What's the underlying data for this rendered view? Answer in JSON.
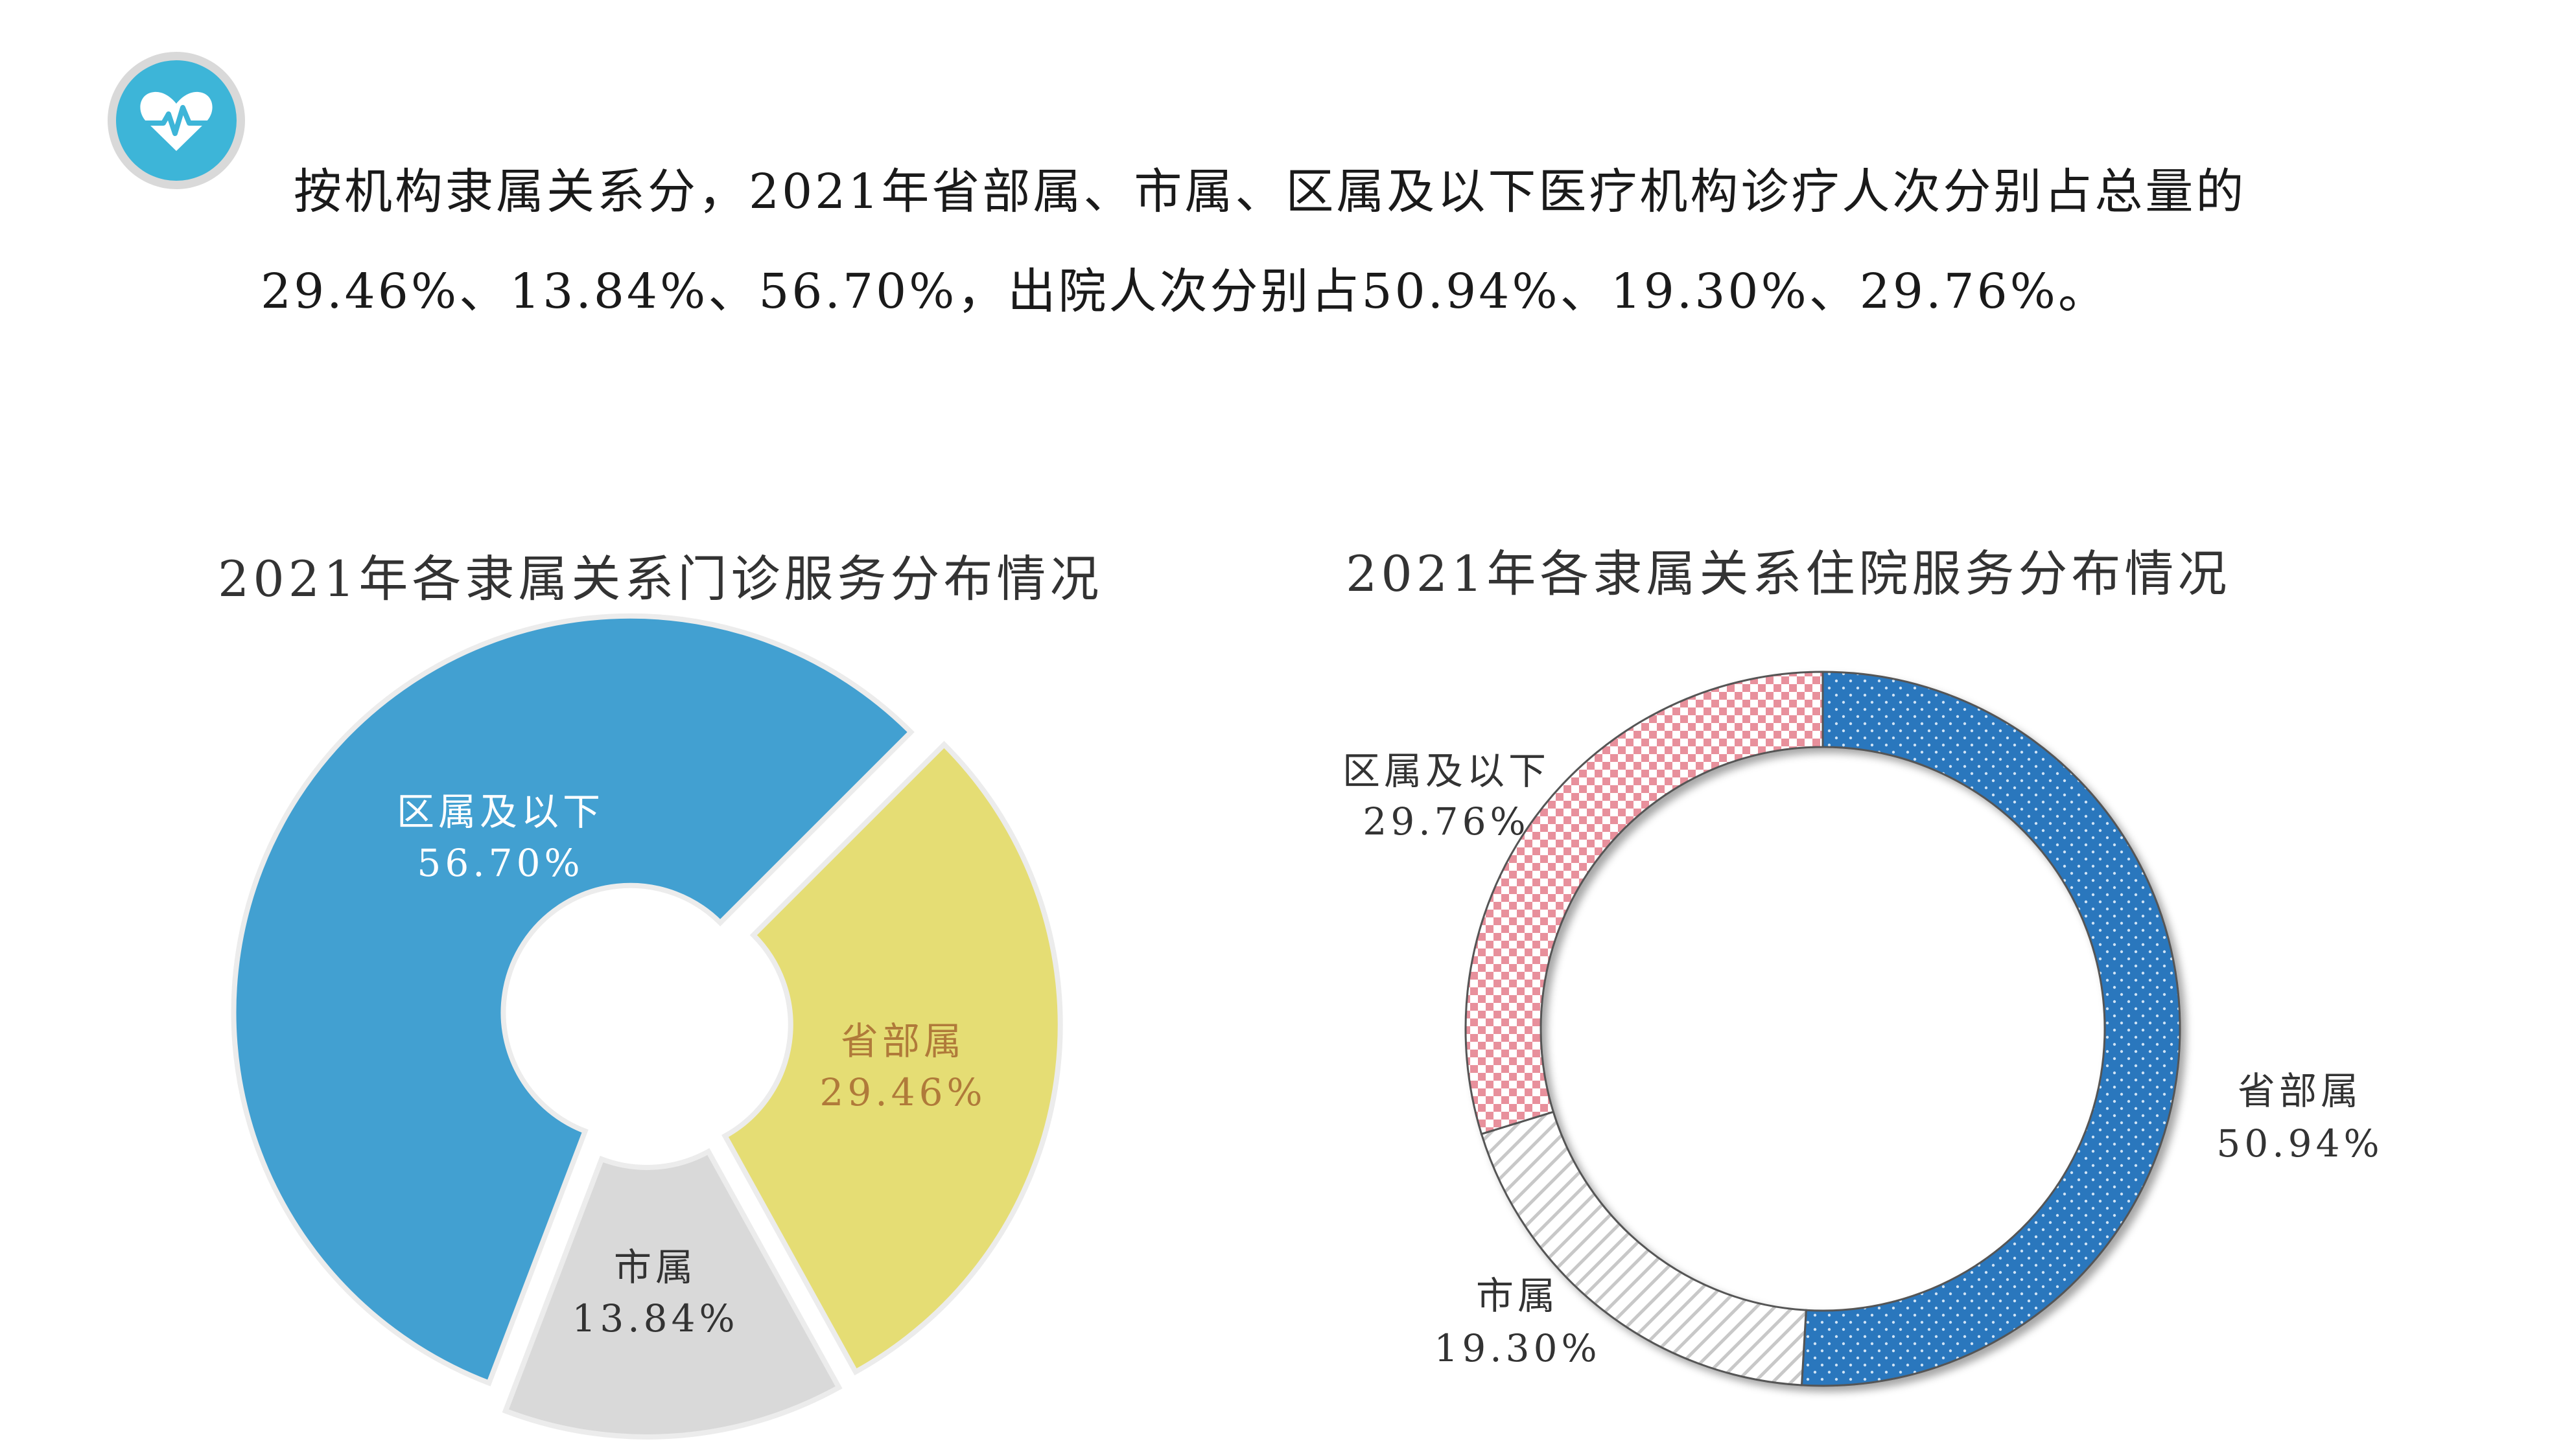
{
  "header": {
    "icon": "heart-pulse-icon",
    "line1": "按机构隶属关系分，2021年省部属、市属、区属及以下医疗机构诊疗人次分别占总量的",
    "line2": "29.46%、13.84%、56.70%，出院人次分别占50.94%、19.30%、29.76%。"
  },
  "colors": {
    "icon_bg": "#3db5d8",
    "icon_ring": "#d9d9d9"
  },
  "chart_data": [
    {
      "type": "pie",
      "title": "2021年各隶属关系门诊服务分布情况",
      "style": "exploded donut",
      "slices": [
        {
          "name": "省部属",
          "value": 29.46,
          "label": "29.46%",
          "color": "#e5dd74",
          "text_color": "#b07a3a"
        },
        {
          "name": "市属",
          "value": 13.84,
          "label": "13.84%",
          "color": "#d9d9d9",
          "text_color": "#333333"
        },
        {
          "name": "区属及以下",
          "value": 56.7,
          "label": "56.70%",
          "color": "#42a0d1",
          "text_color": "#ffffff"
        }
      ]
    },
    {
      "type": "pie",
      "title": "2021年各隶属关系住院服务分布情况",
      "style": "donut",
      "slices": [
        {
          "name": "省部属",
          "value": 50.94,
          "label": "50.94%",
          "color": "#2a77bd",
          "pattern": "dots"
        },
        {
          "name": "市属",
          "value": 19.3,
          "label": "19.30%",
          "color": "#bfbfbf",
          "pattern": "diagonal-lines"
        },
        {
          "name": "区属及以下",
          "value": 29.76,
          "label": "29.76%",
          "color": "#e8909c",
          "pattern": "checker"
        }
      ]
    }
  ]
}
